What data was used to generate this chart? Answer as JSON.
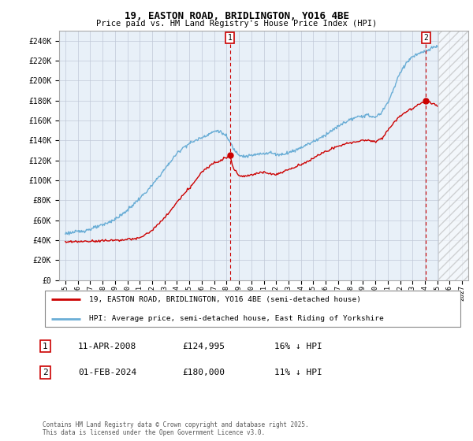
{
  "title": "19, EASTON ROAD, BRIDLINGTON, YO16 4BE",
  "subtitle": "Price paid vs. HM Land Registry's House Price Index (HPI)",
  "ylabel_ticks": [
    "£0",
    "£20K",
    "£40K",
    "£60K",
    "£80K",
    "£100K",
    "£120K",
    "£140K",
    "£160K",
    "£180K",
    "£200K",
    "£220K",
    "£240K"
  ],
  "ytick_values": [
    0,
    20000,
    40000,
    60000,
    80000,
    100000,
    120000,
    140000,
    160000,
    180000,
    200000,
    220000,
    240000
  ],
  "ylim": [
    0,
    250000
  ],
  "hpi_color": "#6baed6",
  "price_color": "#cc0000",
  "marker1_year": 2008.27,
  "marker2_year": 2024.08,
  "sale1_price_val": 124995,
  "sale2_price_val": 180000,
  "sale1_date": "11-APR-2008",
  "sale1_price": "£124,995",
  "sale1_hpi": "16% ↓ HPI",
  "sale2_date": "01-FEB-2024",
  "sale2_price": "£180,000",
  "sale2_hpi": "11% ↓ HPI",
  "legend1": "19, EASTON ROAD, BRIDLINGTON, YO16 4BE (semi-detached house)",
  "legend2": "HPI: Average price, semi-detached house, East Riding of Yorkshire",
  "footnote": "Contains HM Land Registry data © Crown copyright and database right 2025.\nThis data is licensed under the Open Government Licence v3.0.",
  "bg_color": "#ffffff",
  "chart_bg_color": "#e8f0f8",
  "grid_color": "#c0c8d8",
  "hpi_anchors_x": [
    1995.0,
    1995.5,
    1996.0,
    1996.5,
    1997.0,
    1997.5,
    1998.0,
    1998.5,
    1999.0,
    1999.5,
    2000.0,
    2000.5,
    2001.0,
    2001.5,
    2002.0,
    2002.5,
    2003.0,
    2003.5,
    2004.0,
    2004.5,
    2005.0,
    2005.5,
    2006.0,
    2006.5,
    2007.0,
    2007.3,
    2007.6,
    2008.0,
    2008.3,
    2008.6,
    2009.0,
    2009.5,
    2010.0,
    2010.5,
    2011.0,
    2011.5,
    2012.0,
    2012.5,
    2013.0,
    2013.5,
    2014.0,
    2014.5,
    2015.0,
    2015.5,
    2016.0,
    2016.5,
    2017.0,
    2017.5,
    2018.0,
    2018.5,
    2019.0,
    2019.5,
    2020.0,
    2020.5,
    2021.0,
    2021.5,
    2022.0,
    2022.5,
    2023.0,
    2023.5,
    2024.0,
    2024.5,
    2025.0
  ],
  "hpi_anchors_y": [
    47000,
    47500,
    48500,
    49500,
    51000,
    53000,
    55000,
    58000,
    61000,
    65000,
    70000,
    76000,
    82000,
    88000,
    95000,
    103000,
    111000,
    119000,
    127000,
    133000,
    137000,
    140000,
    143000,
    146000,
    149000,
    150000,
    148000,
    144000,
    138000,
    131000,
    126000,
    124000,
    125000,
    126000,
    127000,
    128000,
    126000,
    126000,
    128000,
    130000,
    133000,
    136000,
    139000,
    142000,
    146000,
    150000,
    154000,
    158000,
    161000,
    163000,
    165000,
    165000,
    163000,
    168000,
    178000,
    192000,
    208000,
    218000,
    224000,
    227000,
    229000,
    232000,
    235000
  ],
  "price_anchors_x": [
    1995.0,
    1996.0,
    1997.0,
    1998.0,
    1999.0,
    2000.0,
    2001.0,
    2002.0,
    2003.0,
    2004.0,
    2005.0,
    2006.0,
    2007.0,
    2008.0,
    2008.27,
    2008.5,
    2009.0,
    2009.5,
    2010.0,
    2010.5,
    2011.0,
    2011.5,
    2012.0,
    2012.5,
    2013.0,
    2013.5,
    2014.0,
    2014.5,
    2015.0,
    2015.5,
    2016.0,
    2016.5,
    2017.0,
    2017.5,
    2018.0,
    2018.5,
    2019.0,
    2019.5,
    2020.0,
    2020.5,
    2021.0,
    2021.5,
    2022.0,
    2022.5,
    2023.0,
    2023.5,
    2024.0,
    2024.08,
    2024.5,
    2025.0
  ],
  "price_anchors_y": [
    38000,
    38500,
    39000,
    39500,
    40000,
    40500,
    42000,
    50000,
    62000,
    78000,
    92000,
    108000,
    118000,
    123000,
    124995,
    114000,
    105000,
    104000,
    106000,
    107000,
    108000,
    107000,
    106000,
    108000,
    111000,
    113000,
    116000,
    119000,
    122000,
    126000,
    129000,
    132000,
    134000,
    136000,
    138000,
    139000,
    140000,
    140000,
    139000,
    142000,
    150000,
    158000,
    165000,
    169000,
    172000,
    176000,
    179000,
    180000,
    178000,
    175000
  ]
}
